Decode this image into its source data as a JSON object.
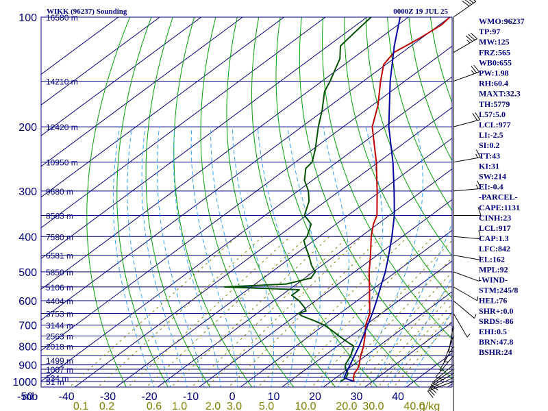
{
  "header": {
    "station": "WIKK (96237) Sounding",
    "time": "0000Z 19 JUL 25"
  },
  "chart_data": {
    "type": "line",
    "title": "WIKK (96237) Sounding",
    "subtitle": "0000Z 19 JUL 25",
    "x_axis": {
      "label": "",
      "unit_label": "mb",
      "ticks": [
        "-50",
        "-40",
        "-30",
        "-20",
        "-10",
        "0",
        "10",
        "20",
        "30",
        "40"
      ],
      "range": [
        -50,
        45
      ]
    },
    "y_axis": {
      "scale": "log",
      "ticks": [
        "100",
        "200",
        "300",
        "400",
        "500",
        "600",
        "700",
        "800",
        "900",
        "1000"
      ],
      "range": [
        100,
        1050
      ]
    },
    "mixing_ratio_ticks": [
      "0.1",
      "0.2",
      "0.6",
      "1.0",
      "2.0",
      "3.0",
      "5.0",
      "10.0",
      "20.0",
      "30.0",
      "40.0"
    ],
    "mixing_ratio_unit": "g/kg",
    "height_labels": [
      {
        "p": 1000,
        "label": "51 m"
      },
      {
        "p": 977,
        "label": "534 m"
      },
      {
        "p": 925,
        "label": "1007 m"
      },
      {
        "p": 875,
        "label": "1499 m"
      },
      {
        "p": 800,
        "label": "2018 m"
      },
      {
        "p": 750,
        "label": "2563 m"
      },
      {
        "p": 700,
        "label": "3144 m"
      },
      {
        "p": 650,
        "label": "3753 m"
      },
      {
        "p": 600,
        "label": "4404 m"
      },
      {
        "p": 550,
        "label": "5106 m"
      },
      {
        "p": 500,
        "label": "5850 m"
      },
      {
        "p": 450,
        "label": "6581 m"
      },
      {
        "p": 400,
        "label": "7580 m"
      },
      {
        "p": 350,
        "label": "8563 m"
      },
      {
        "p": 300,
        "label": "9680 m"
      },
      {
        "p": 250,
        "label": "10950 m"
      },
      {
        "p": 200,
        "label": "12420 m"
      },
      {
        "p": 150,
        "label": "14210 m"
      },
      {
        "p": 100,
        "label": "16580 m"
      }
    ],
    "series": [
      {
        "name": "",
        "color": "#c00000",
        "points": [
          [
            1000,
            25.6
          ],
          [
            980,
            24.4
          ],
          [
            950,
            23.0
          ],
          [
            925,
            22.4
          ],
          [
            900,
            21.4
          ],
          [
            850,
            18.8
          ],
          [
            800,
            16.4
          ],
          [
            750,
            13.4
          ],
          [
            700,
            10.0
          ],
          [
            650,
            7.2
          ],
          [
            600,
            3.0
          ],
          [
            550,
            -1.5
          ],
          [
            500,
            -6.5
          ],
          [
            450,
            -11.6
          ],
          [
            400,
            -17.5
          ],
          [
            370,
            -21.0
          ],
          [
            350,
            -23.0
          ],
          [
            300,
            -30.9
          ],
          [
            250,
            -40.5
          ],
          [
            200,
            -53.0
          ],
          [
            175,
            -58.5
          ],
          [
            150,
            -65.8
          ],
          [
            135,
            -70.5
          ],
          [
            125,
            -72.0
          ],
          [
            115,
            -70.5
          ],
          [
            105,
            -69.5
          ],
          [
            100,
            -70.0
          ]
        ]
      },
      {
        "name": "",
        "color": "#005000",
        "points": [
          [
            1000,
            22.3
          ],
          [
            980,
            22.5
          ],
          [
            950,
            21.5
          ],
          [
            925,
            19.5
          ],
          [
            900,
            18.0
          ],
          [
            850,
            16.4
          ],
          [
            800,
            14.0
          ],
          [
            760,
            8.5
          ],
          [
            720,
            3.0
          ],
          [
            700,
            0.0
          ],
          [
            680,
            -4.0
          ],
          [
            660,
            -8.5
          ],
          [
            650,
            -10.0
          ],
          [
            640,
            -9.0
          ],
          [
            630,
            -10.0
          ],
          [
            600,
            -14.0
          ],
          [
            580,
            -17.5
          ],
          [
            560,
            -17.5
          ],
          [
            550,
            -36.5
          ],
          [
            540,
            -22.5
          ],
          [
            520,
            -18.5
          ],
          [
            500,
            -19.5
          ],
          [
            480,
            -22.5
          ],
          [
            450,
            -26.5
          ],
          [
            430,
            -29.5
          ],
          [
            410,
            -32.5
          ],
          [
            400,
            -33.0
          ],
          [
            370,
            -36.0
          ],
          [
            350,
            -40.5
          ],
          [
            320,
            -44.0
          ],
          [
            300,
            -47.5
          ],
          [
            280,
            -52.0
          ],
          [
            260,
            -55.5
          ],
          [
            250,
            -56.0
          ],
          [
            230,
            -59.5
          ],
          [
            200,
            -66.0
          ],
          [
            180,
            -70.5
          ],
          [
            160,
            -76.0
          ],
          [
            150,
            -78.0
          ],
          [
            130,
            -83.0
          ],
          [
            120,
            -87.0
          ],
          [
            110,
            -88.0
          ],
          [
            100,
            -89.0
          ]
        ]
      },
      {
        "name": "",
        "color": "#0000a0",
        "points": [
          [
            1000,
            25.6
          ],
          [
            977,
            22.0
          ],
          [
            950,
            21.0
          ],
          [
            900,
            19.2
          ],
          [
            850,
            17.3
          ],
          [
            800,
            15.3
          ],
          [
            750,
            13.0
          ],
          [
            700,
            10.5
          ],
          [
            650,
            7.8
          ],
          [
            600,
            4.7
          ],
          [
            550,
            1.2
          ],
          [
            500,
            -2.6
          ],
          [
            450,
            -7.2
          ],
          [
            400,
            -12.5
          ],
          [
            350,
            -18.8
          ],
          [
            300,
            -26.8
          ],
          [
            250,
            -36.5
          ],
          [
            200,
            -49.0
          ],
          [
            150,
            -63.5
          ],
          [
            120,
            -74.0
          ],
          [
            100,
            -82.0
          ]
        ]
      }
    ],
    "wind_barbs": [
      {
        "p": 1000,
        "dir": 250,
        "kt": 10
      },
      {
        "p": 975,
        "dir": 245,
        "kt": 12
      },
      {
        "p": 950,
        "dir": 240,
        "kt": 15
      },
      {
        "p": 925,
        "dir": 235,
        "kt": 14
      },
      {
        "p": 900,
        "dir": 230,
        "kt": 12
      },
      {
        "p": 850,
        "dir": 220,
        "kt": 10
      },
      {
        "p": 800,
        "dir": 210,
        "kt": 8
      },
      {
        "p": 750,
        "dir": 200,
        "kt": 7
      },
      {
        "p": 700,
        "dir": 190,
        "kt": 6
      },
      {
        "p": 650,
        "dir": 150,
        "kt": 5
      },
      {
        "p": 600,
        "dir": 130,
        "kt": 6
      },
      {
        "p": 550,
        "dir": 120,
        "kt": 8
      },
      {
        "p": 500,
        "dir": 110,
        "kt": 7
      },
      {
        "p": 450,
        "dir": 100,
        "kt": 8
      },
      {
        "p": 400,
        "dir": 95,
        "kt": 10
      },
      {
        "p": 350,
        "dir": 90,
        "kt": 12
      },
      {
        "p": 300,
        "dir": 85,
        "kt": 15
      },
      {
        "p": 250,
        "dir": 80,
        "kt": 18
      },
      {
        "p": 200,
        "dir": 75,
        "kt": 20
      },
      {
        "p": 150,
        "dir": 70,
        "kt": 25
      },
      {
        "p": 125,
        "dir": 60,
        "kt": 35
      },
      {
        "p": 100,
        "dir": 55,
        "kt": 40
      }
    ]
  },
  "indices": [
    "WMO:96237",
    "TP:97",
    "MW:125",
    "FRZ:565",
    "WB0:655",
    "PW:1.98",
    "RH:60.4",
    "MAXT:32.3",
    "TH:5779",
    "L57:5.0",
    "LCL:977",
    "LI:-2.5",
    "SI:0.2",
    "TT:43",
    "KI:31",
    "SW:214",
    "EI:-0.4",
    "-PARCEL-",
    "CAPE:1131",
    "CINH:23",
    "LCL:917",
    "CAP:1.3",
    "LFC:842",
    "EL:162",
    "MPL:92",
    "-WIND-",
    "STM:245/8",
    "HEL:76",
    "SHR+:0.0",
    "SRDS:-86",
    "EHI:0.5",
    "BRN:47.8",
    "BSHR:24"
  ],
  "colors": {
    "isobar": "#000080",
    "isotherm": "#000080",
    "dry_adiabat": "#00a000",
    "moist_adiabat": "#30a0ff",
    "mixing_ratio": "#808000",
    "temperature": "#c00000",
    "dewpoint": "#005000",
    "parcel": "#0000a0"
  }
}
